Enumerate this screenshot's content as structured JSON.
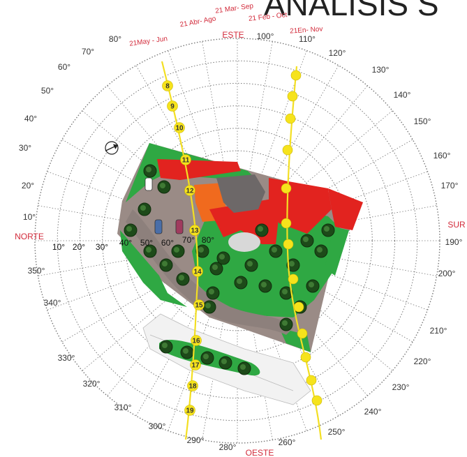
{
  "title_partial": "ANÁLISIS S",
  "colors": {
    "grid": "#777777",
    "sun_path": "#f3df23",
    "sun_marker": "#f6e31c",
    "cardinal": "#d22a3a",
    "roof": "#e2231f",
    "roof_alt": "#f06a1e",
    "lawn": "#2fa843",
    "paving": "#9a8b86",
    "tree": "#1d4a19"
  },
  "cardinals": {
    "north": "NORTE",
    "east": "ESTE",
    "south": "SUR",
    "west": "OESTE"
  },
  "azimuth_labels": [
    "10°",
    "20°",
    "30°",
    "40°",
    "50°",
    "60°",
    "70°",
    "80°",
    "100°",
    "110°",
    "120°",
    "130°",
    "140°",
    "150°",
    "160°",
    "170°",
    "190°",
    "200°",
    "210°",
    "220°",
    "230°",
    "240°",
    "250°",
    "260°",
    "280°",
    "290°",
    "300°",
    "310°",
    "320°",
    "330°",
    "340°",
    "350°"
  ],
  "altitude_labels": [
    "10°",
    "20°",
    "30°",
    "40°",
    "50°",
    "60°",
    "70°",
    "80°"
  ],
  "date_labels": [
    "21May - Jun",
    "21 Abr- Ago",
    "21 Mar- Sep",
    "21 Feb - Oct",
    "21En- Nov"
  ],
  "hour_labels": [
    "8",
    "9",
    "10",
    "11",
    "12",
    "13",
    "14",
    "15",
    "16",
    "17",
    "18",
    "19"
  ],
  "icons": [
    "north-arrow-icon",
    "car-icon",
    "tree-icon"
  ]
}
